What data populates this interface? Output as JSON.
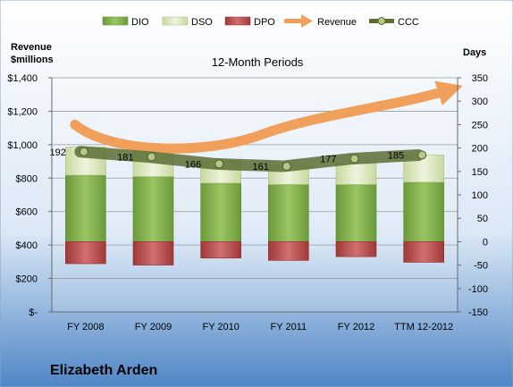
{
  "chart_data": {
    "type": "bar",
    "title": "12-Month Periods",
    "company": "Elizabeth Arden",
    "categories": [
      "FY 2008",
      "FY 2009",
      "FY 2010",
      "FY 2011",
      "FY 2012",
      "TTM 12-2012"
    ],
    "left_axis": {
      "label_line1": "Revenue",
      "label_line2": "$millions",
      "ylim": [
        0,
        1400
      ],
      "ticks": [
        "$-",
        "$200",
        "$400",
        "$600",
        "$800",
        "$1,000",
        "$1,200",
        "$1,400"
      ]
    },
    "right_axis": {
      "label": "Days",
      "ylim": [
        -150,
        350
      ],
      "ticks": [
        "-150",
        "-100",
        "-50",
        "0",
        "50",
        "100",
        "150",
        "200",
        "250",
        "300",
        "350"
      ]
    },
    "legend": [
      "DIO",
      "DSO",
      "DPO",
      "Revenue",
      "CCC"
    ],
    "series": [
      {
        "name": "DIO",
        "values": [
          142,
          139,
          125,
          122,
          122,
          127
        ]
      },
      {
        "name": "DSO",
        "values": [
          60,
          63,
          47,
          40,
          45,
          58
        ]
      },
      {
        "name": "DPO",
        "values": [
          -47,
          -50,
          -35,
          -40,
          -32,
          -44
        ]
      },
      {
        "name": "CCC",
        "values": [
          192,
          181,
          166,
          161,
          177,
          185
        ]
      }
    ],
    "revenue_trend": "upward arrow",
    "colors": {
      "dio": "#7ea84a",
      "dso": "#d7e4b2",
      "dpo": "#b84a4a",
      "revenue": "#f0a05a",
      "ccc": "#5a6e32"
    },
    "grid": true,
    "legend_position": "top"
  }
}
